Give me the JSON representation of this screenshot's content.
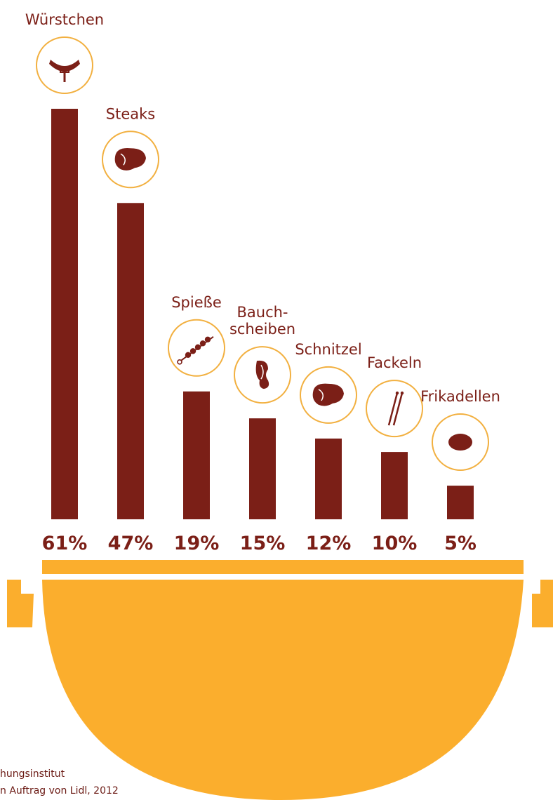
{
  "colors": {
    "bar": "#7b1f17",
    "icon_ring": "#f2b040",
    "icon_fill": "#7b1f17",
    "grill": "#fbae2d",
    "text": "#7b1f17"
  },
  "chart_data": {
    "type": "bar",
    "title": "",
    "xlabel": "",
    "ylabel": "",
    "ylim": [
      0,
      61
    ],
    "grid": false,
    "categories": [
      {
        "label_lines": [
          "Würstchen"
        ],
        "value": 61,
        "value_label": "61%",
        "icon": "sausage-icon"
      },
      {
        "label_lines": [
          "Steaks"
        ],
        "value": 47,
        "value_label": "47%",
        "icon": "steak-icon"
      },
      {
        "label_lines": [
          "Spieße"
        ],
        "value": 19,
        "value_label": "19%",
        "icon": "skewer-icon"
      },
      {
        "label_lines": [
          "Bauch-",
          "scheiben"
        ],
        "value": 15,
        "value_label": "15%",
        "icon": "pork-belly-icon"
      },
      {
        "label_lines": [
          "Schnitzel"
        ],
        "value": 12,
        "value_label": "12%",
        "icon": "schnitzel-icon"
      },
      {
        "label_lines": [
          "Fackeln"
        ],
        "value": 10,
        "value_label": "10%",
        "icon": "fackeln-icon"
      },
      {
        "label_lines": [
          "Frikadellen"
        ],
        "value": 5,
        "value_label": "5%",
        "icon": "meatball-icon"
      }
    ]
  },
  "source": {
    "line1": "hungsinstitut",
    "line2": "n Auftrag von Lidl, 2012"
  }
}
